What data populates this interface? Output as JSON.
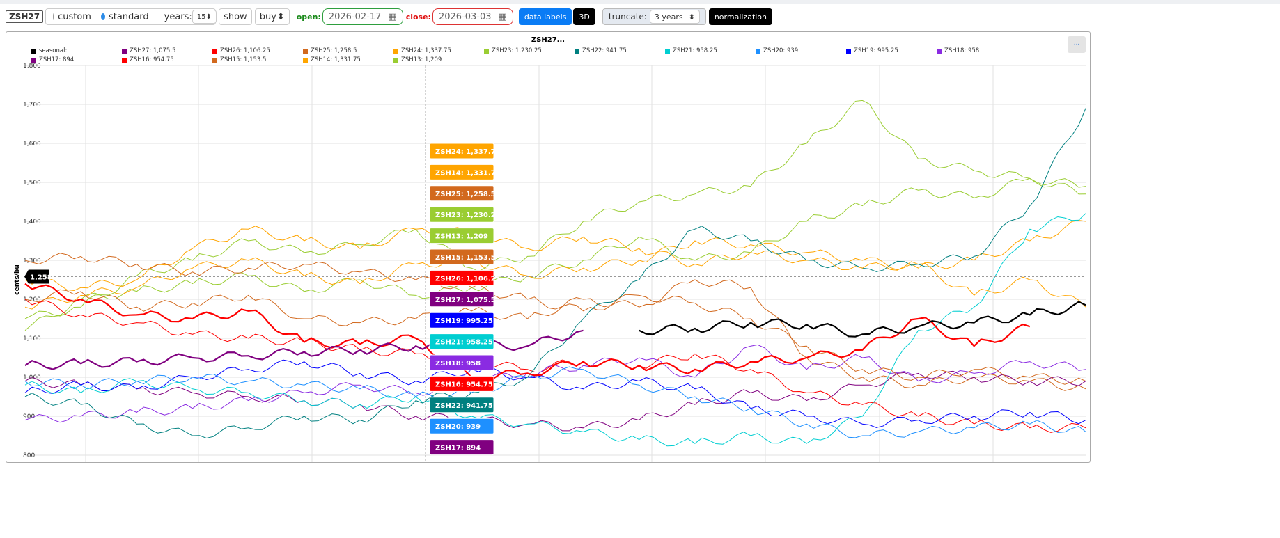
{
  "toolbar": {
    "symbol": "ZSH27",
    "mode_custom": "custom",
    "mode_standard": "standard",
    "mode_selected": "standard",
    "years_label": "years:",
    "years_value": "15",
    "show_label": "show",
    "direction": "buy",
    "open_label": "open:",
    "open_date": "2026-02-17",
    "close_label": "close:",
    "close_date": "2026-03-03",
    "data_labels": "data labels",
    "three_d": "3D",
    "truncate_label": "truncate:",
    "truncate_value": "3 years",
    "normalization": "normalization"
  },
  "chart_menu": "...",
  "chart_data": {
    "type": "line",
    "title": "ZSH27...",
    "ylabel": "cents/bu",
    "ylim": [
      800,
      1800
    ],
    "yticks": [
      "800",
      "900",
      "1,000",
      "1,100",
      "1,200",
      "1,300",
      "1,400",
      "1,500",
      "1,600",
      "1,700",
      "1,800"
    ],
    "grid": true,
    "legend": "top",
    "current_price_label": "1,258",
    "current_price": 1258,
    "series": [
      {
        "name": "seasonal",
        "legend": "seasonal:",
        "color": "#000000",
        "width": 2.2,
        "values": [
          null,
          null,
          null,
          null,
          null,
          null,
          null,
          null,
          null,
          null,
          null,
          1120,
          1125,
          1140,
          1135,
          1110,
          1130,
          1140,
          1160,
          1185
        ]
      },
      {
        "name": "ZSH27",
        "legend": "ZSH27: 1,075.5",
        "tag": "ZSH27: 1,075.5",
        "color": "#800080",
        "width": 2.2,
        "values": [
          1030,
          1035,
          1040,
          1050,
          1055,
          1065,
          1070,
          1080,
          1085,
          1080,
          1120,
          null,
          null,
          null,
          null,
          null,
          null,
          null,
          null,
          null
        ]
      },
      {
        "name": "ZSH26",
        "legend": "ZSH26: 1,106.25",
        "tag": "ZSH26: 1,106.25",
        "color": "#ff0000",
        "width": 2.2,
        "values": [
          1240,
          1200,
          1160,
          1150,
          1170,
          1090,
          1085,
          1100,
          1000,
          1010,
          1040,
          1030,
          1020,
          1040,
          1050,
          1070,
          1150,
          1080,
          1130,
          null
        ]
      },
      {
        "name": "ZSH25",
        "legend": "ZSH25: 1,258.5",
        "tag": "ZSH25: 1,258.5",
        "color": "#d2691e",
        "width": 1,
        "values": [
          1300,
          1310,
          1290,
          1270,
          1280,
          1290,
          1270,
          1250,
          1230,
          1200,
          1170,
          1210,
          1190,
          1150,
          1080,
          1020,
          1000,
          1020,
          1000,
          990
        ]
      },
      {
        "name": "ZSH24",
        "legend": "ZSH24: 1,337.75",
        "tag": "ZSH24: 1,337.75",
        "color": "#ffa500",
        "width": 1,
        "values": [
          1250,
          1230,
          1250,
          1330,
          1380,
          1350,
          1330,
          1380,
          1370,
          1330,
          1360,
          1330,
          1290,
          1320,
          1300,
          1280,
          1290,
          1210,
          1250,
          1180
        ]
      },
      {
        "name": "ZSH23",
        "legend": "ZSH23: 1,230.25",
        "tag": "ZSH23: 1,230.25",
        "color": "#9acd32",
        "width": 1,
        "values": [
          1150,
          1180,
          1260,
          1300,
          1350,
          1320,
          1340,
          1380,
          1280,
          1310,
          1400,
          1450,
          1470,
          1490,
          1600,
          1710,
          1560,
          1530,
          1510,
          1490
        ]
      },
      {
        "name": "ZSH22",
        "legend": "ZSH22: 941.75",
        "tag": "ZSH22: 941.75",
        "color": "#008080",
        "width": 1,
        "values": [
          950,
          930,
          880,
          850,
          870,
          900,
          890,
          940,
          960,
          1000,
          1150,
          1250,
          1380,
          1350,
          1300,
          1280,
          1290,
          1310,
          1440,
          1690
        ]
      },
      {
        "name": "ZSH21",
        "legend": "ZSH21: 958.25",
        "tag": "ZSH21: 958.25",
        "color": "#00ced1",
        "width": 1,
        "values": [
          980,
          960,
          990,
          970,
          960,
          940,
          930,
          950,
          900,
          880,
          860,
          840,
          830,
          850,
          830,
          900,
          1120,
          1180,
          1380,
          1420
        ]
      },
      {
        "name": "ZSH20",
        "legend": "ZSH20: 939",
        "tag": "ZSH20: 939",
        "color": "#1e90ff",
        "width": 1,
        "values": [
          990,
          980,
          990,
          1000,
          990,
          980,
          970,
          950,
          960,
          1000,
          1020,
          980,
          950,
          920,
          880,
          850,
          860,
          870,
          880,
          860
        ]
      },
      {
        "name": "ZSH19",
        "legend": "ZSH19: 995.25",
        "tag": "ZSH19: 995.25",
        "color": "#0000ff",
        "width": 1,
        "values": [
          960,
          980,
          970,
          1000,
          1020,
          1040,
          1010,
          990,
          1020,
          1000,
          970,
          990,
          970,
          920,
          900,
          880,
          890,
          900,
          910,
          890
        ]
      },
      {
        "name": "ZSH18",
        "legend": "ZSH18: 958",
        "tag": "ZSH18: 958",
        "color": "#8a2be2",
        "width": 1,
        "values": [
          890,
          900,
          910,
          920,
          940,
          960,
          980,
          960,
          990,
          1010,
          1030,
          1050,
          1000,
          1080,
          1020,
          1050,
          990,
          1010,
          1040,
          1020
        ]
      },
      {
        "name": "ZSH17",
        "legend": "ZSH17: 894",
        "tag": "ZSH17: 894",
        "color": "#800080",
        "width": 1,
        "values": [
          990,
          980,
          970,
          960,
          950,
          940,
          930,
          900,
          890,
          880,
          870,
          890,
          930,
          960,
          940,
          980,
          1010,
          1000,
          990,
          990
        ]
      },
      {
        "name": "ZSH16",
        "legend": "ZSH16: 954.75",
        "tag": "ZSH16: 954.75",
        "color": "#ff0000",
        "width": 1,
        "values": [
          1200,
          1160,
          1140,
          1110,
          1100,
          1090,
          1070,
          1060,
          1040,
          1020,
          1040,
          1030,
          1060,
          1020,
          960,
          930,
          900,
          880,
          870,
          870
        ]
      },
      {
        "name": "ZSH15",
        "legend": "ZSH15: 1,153.5",
        "tag": "ZSH15: 1,153.5",
        "color": "#d2691e",
        "width": 1,
        "values": [
          1200,
          1220,
          1180,
          1190,
          1210,
          1150,
          1140,
          1150,
          1170,
          1150,
          1200,
          1180,
          1250,
          1230,
          1050,
          1000,
          980,
          1000,
          990,
          970
        ]
      },
      {
        "name": "ZSH14",
        "legend": "ZSH14: 1,331.75",
        "tag": "ZSH14: 1,331.75",
        "color": "#ffa500",
        "width": 1,
        "values": [
          1180,
          1210,
          1230,
          1280,
          1300,
          1260,
          1240,
          1290,
          1300,
          1260,
          1280,
          1300,
          1350,
          1340,
          1320,
          1300,
          1280,
          1300,
          1350,
          1400
        ]
      },
      {
        "name": "ZSH13",
        "legend": "ZSH13: 1,209",
        "tag": "ZSH13: 1,209",
        "color": "#9acd32",
        "width": 1,
        "values": [
          1120,
          1200,
          1220,
          1240,
          1260,
          1220,
          1250,
          1210,
          1230,
          1260,
          1300,
          1360,
          1300,
          1320,
          1400,
          1440,
          1480,
          1460,
          1510,
          1470
        ]
      }
    ],
    "tag_order": [
      "ZSH24",
      "ZSH14",
      "ZSH25",
      "ZSH23",
      "ZSH13",
      "ZSH15",
      "ZSH26",
      "ZSH27",
      "ZSH19",
      "ZSH21",
      "ZSH18",
      "ZSH16",
      "ZSH22",
      "ZSH20",
      "ZSH17"
    ]
  }
}
